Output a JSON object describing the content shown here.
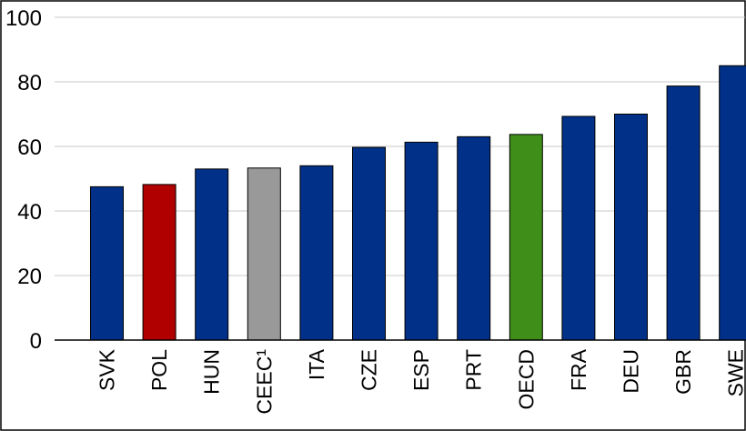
{
  "chart_data": {
    "type": "bar",
    "title": "",
    "xlabel": "",
    "ylabel": "",
    "ylim": [
      0,
      100
    ],
    "yticks": [
      "0",
      "20",
      "40",
      "60",
      "80",
      "100"
    ],
    "grid": "horizontal",
    "categories": [
      "SVK",
      "POL",
      "HUN",
      "CEEC¹",
      "ITA",
      "CZE",
      "ESP",
      "PRT",
      "OECD",
      "FRA",
      "DEU",
      "GBR",
      "SWE"
    ],
    "values": [
      47.5,
      48.2,
      53,
      53.3,
      54,
      59.7,
      61.3,
      63,
      63.7,
      69.3,
      70,
      78.7,
      85
    ],
    "colors": [
      "#003087",
      "#b00000",
      "#003087",
      "#999999",
      "#003087",
      "#003087",
      "#003087",
      "#003087",
      "#3f8e1a",
      "#003087",
      "#003087",
      "#003087",
      "#003087"
    ]
  }
}
